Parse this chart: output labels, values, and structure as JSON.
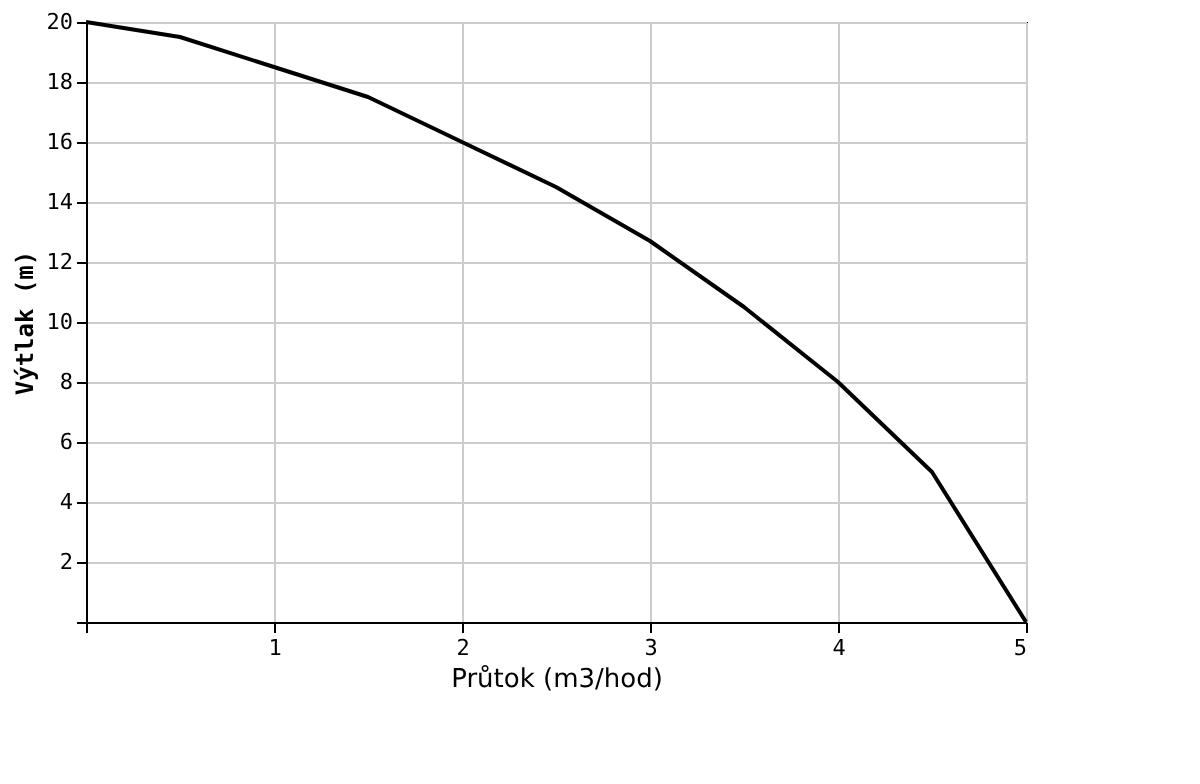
{
  "chart_data": {
    "type": "line",
    "xlabel": "Průtok (m3/hod)",
    "ylabel": "Výtlak (m)",
    "x": [
      0,
      0.5,
      1,
      1.5,
      2,
      2.5,
      3,
      3.5,
      4,
      4.5,
      5
    ],
    "series": [
      {
        "color": "#000000",
        "values": [
          20,
          19.5,
          18.5,
          17.5,
          16,
          14.5,
          12.7,
          10.5,
          8,
          5,
          0
        ]
      }
    ],
    "xlim": [
      0,
      5
    ],
    "ylim": [
      0,
      20
    ],
    "xticks": [
      {
        "value": 0,
        "label": null
      },
      1,
      2,
      3,
      4,
      5
    ],
    "yticks": [
      {
        "value": 0,
        "label": null
      },
      2,
      4,
      6,
      8,
      10,
      12,
      14,
      16,
      18,
      20
    ],
    "grid": true,
    "marker": "none",
    "line_style": "solid"
  }
}
